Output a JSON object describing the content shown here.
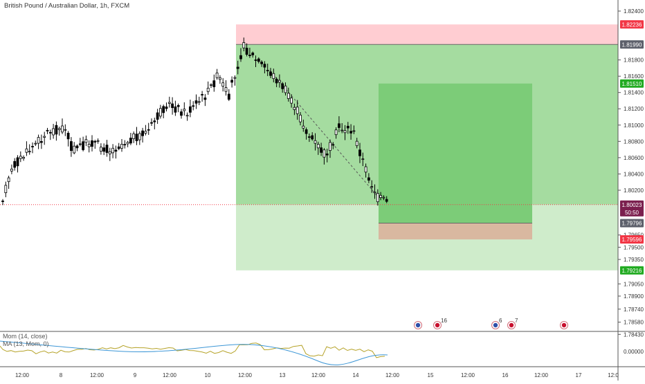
{
  "header": {
    "title": "British Pound / Australian Dollar, 1h, FXCM"
  },
  "indicator": {
    "mom_label": "Mom (14, close)",
    "ma_label": "MA (13, Mom, 0)",
    "zero_label": "0.00000"
  },
  "colors": {
    "up_candle": "#ffffff",
    "down_candle": "#000000",
    "stop_zone": "#ffcdd2",
    "profit_zone": "#a5dca0",
    "profit_zone_light": "#cfeccb",
    "inner_target": "#7ccc78",
    "inner_stop": "#d9b8a0",
    "tag_red": "#f23645",
    "tag_green": "#22ab22",
    "tag_gray": "#5d606b",
    "tag_purple": "#7b1f4e",
    "mom_line": "#b5a227",
    "ma_line": "#3c96d6"
  },
  "price_axis": {
    "ticks": [
      "1.82400",
      "1.81990",
      "1.81800",
      "1.81510",
      "1.81400",
      "1.81200",
      "1.81000",
      "1.80800",
      "1.80600",
      "1.80400",
      "1.80200",
      "1.80023",
      "1.79796",
      "1.79650",
      "1.79596",
      "1.79500",
      "1.79350",
      "1.79216",
      "1.79050",
      "1.78900",
      "1.78740",
      "1.78580",
      "1.78430"
    ],
    "plain_ticks": [
      "1.82400",
      "1.81800",
      "1.81600",
      "1.81400",
      "1.81200",
      "1.81000",
      "1.80800",
      "1.80600",
      "1.80400",
      "1.80200",
      "1.79650",
      "1.79500",
      "1.79350",
      "1.79050",
      "1.78900",
      "1.78740",
      "1.78580",
      "1.78430"
    ]
  },
  "price_tags": [
    {
      "label": "1.82236",
      "kind": "red"
    },
    {
      "label": "1.81990",
      "kind": "gray"
    },
    {
      "label": "1.81510",
      "kind": "green"
    },
    {
      "label": "1.80023",
      "kind": "purple"
    },
    {
      "label": "50:50",
      "kind": "purple"
    },
    {
      "label": "1.79796",
      "kind": "gray"
    },
    {
      "label": "1.79596",
      "kind": "red"
    },
    {
      "label": "1.79216",
      "kind": "green"
    }
  ],
  "time_axis": {
    "labels": [
      "12:00",
      "8",
      "12:00",
      "9",
      "12:00",
      "10",
      "12:00",
      "13",
      "12:00",
      "14",
      "12:00",
      "15",
      "12:00",
      "16",
      "12:00",
      "17",
      "12:0"
    ]
  },
  "event_markers": [
    {
      "icon": "australia-flag-icon",
      "count": ""
    },
    {
      "icon": "uk-flag-icon",
      "count": "16"
    },
    {
      "icon": "australia-flag-icon",
      "count": "6"
    },
    {
      "icon": "uk-flag-icon",
      "count": "7"
    },
    {
      "icon": "uk-flag-icon",
      "count": ""
    }
  ]
}
